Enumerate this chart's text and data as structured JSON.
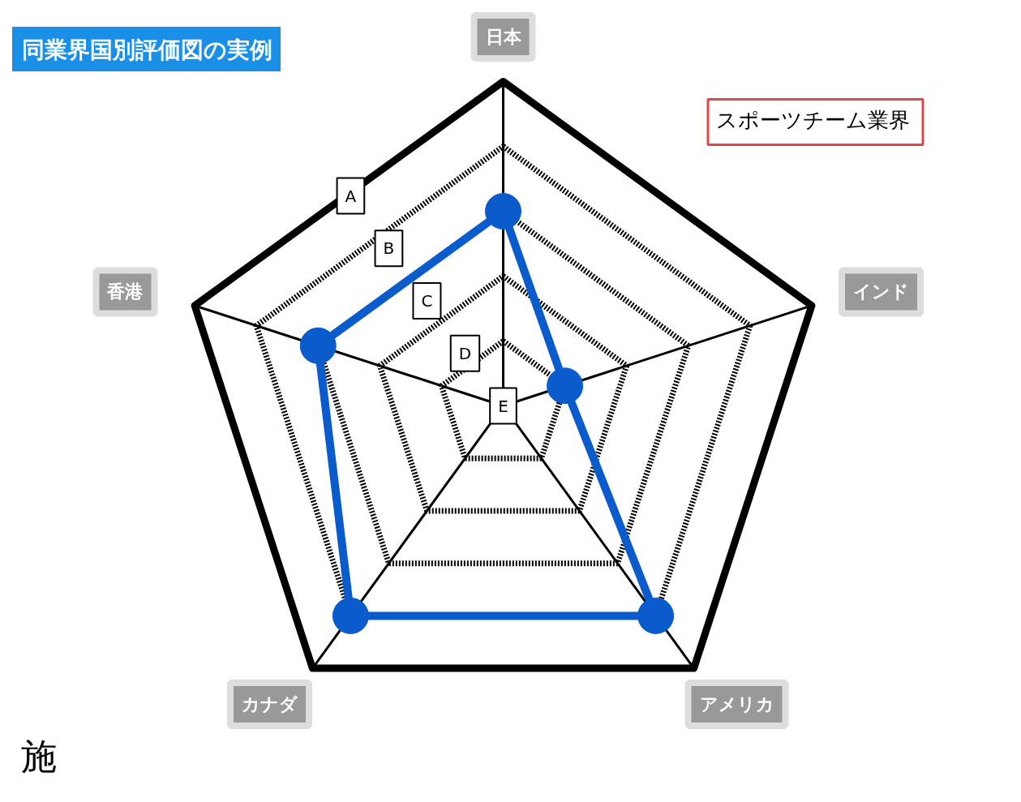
{
  "chart_data": {
    "type": "radar",
    "title": "同業界国別評価図の実例",
    "categories": [
      "日本",
      "インド",
      "アメリカ",
      "カナダ",
      "香港"
    ],
    "series": [
      {
        "color": "#0a5ccc",
        "values": [
          3,
          1,
          4,
          4,
          3
        ]
      }
    ],
    "ylim": [
      0,
      5
    ],
    "yticks": [
      {
        "value": 0,
        "label": "E"
      },
      {
        "value": 1,
        "label": "D"
      },
      {
        "value": 2,
        "label": "C"
      },
      {
        "value": 3,
        "label": "B"
      },
      {
        "value": 4,
        "label": "A"
      }
    ],
    "grid": true,
    "marker": "circle",
    "line_style": "solid",
    "annotations": [
      "スポーツチーム業界",
      "施"
    ]
  }
}
